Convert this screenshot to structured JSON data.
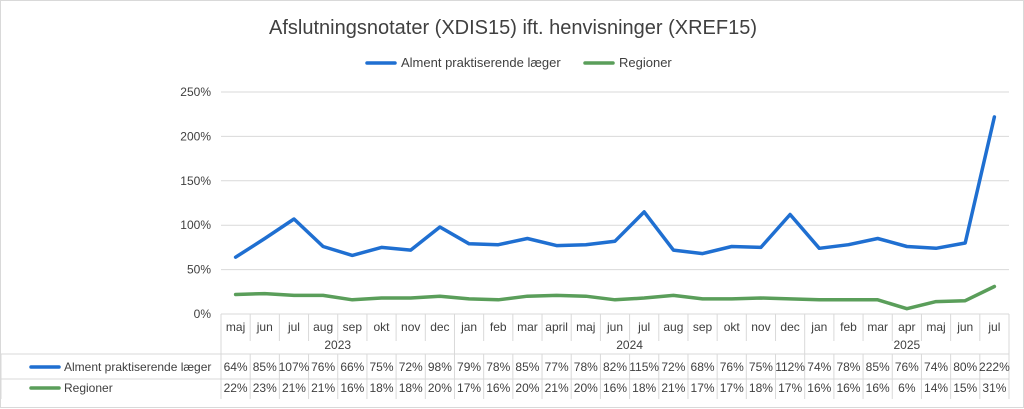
{
  "chart_data": {
    "type": "line",
    "title": "Afslutningsnotater (XDIS15) ift. henvisninger (XREF15)",
    "xlabel": "",
    "ylabel": "",
    "ylim": [
      0,
      250
    ],
    "y_ticks": [
      "0%",
      "50%",
      "100%",
      "150%",
      "200%",
      "250%"
    ],
    "legend_position": "top",
    "grid": true,
    "categories": [
      "maj",
      "jun",
      "jul",
      "aug",
      "sep",
      "okt",
      "nov",
      "dec",
      "jan",
      "feb",
      "mar",
      "april",
      "maj",
      "jun",
      "jul",
      "aug",
      "sep",
      "okt",
      "nov",
      "dec",
      "jan",
      "feb",
      "mar",
      "apr",
      "maj",
      "jun",
      "jul"
    ],
    "year_groups": [
      {
        "label": "2023",
        "count": 8
      },
      {
        "label": "2024",
        "count": 12
      },
      {
        "label": "2025",
        "count": 7
      }
    ],
    "series": [
      {
        "name": "Alment praktiserende læger",
        "color": "#1f6fd1",
        "values": [
          64,
          85,
          107,
          76,
          66,
          75,
          72,
          98,
          79,
          78,
          85,
          77,
          78,
          82,
          115,
          72,
          68,
          76,
          75,
          112,
          74,
          78,
          85,
          76,
          74,
          80,
          222
        ],
        "labels": [
          "64%",
          "85%",
          "107%",
          "76%",
          "66%",
          "75%",
          "72%",
          "98%",
          "79%",
          "78%",
          "85%",
          "77%",
          "78%",
          "82%",
          "115%",
          "72%",
          "68%",
          "76%",
          "75%",
          "112%",
          "74%",
          "78%",
          "85%",
          "76%",
          "74%",
          "80%",
          "222%"
        ]
      },
      {
        "name": "Regioner",
        "color": "#5a9e5a",
        "values": [
          22,
          23,
          21,
          21,
          16,
          18,
          18,
          20,
          17,
          16,
          20,
          21,
          20,
          16,
          18,
          21,
          17,
          17,
          18,
          17,
          16,
          16,
          16,
          6,
          14,
          15,
          31
        ],
        "labels": [
          "22%",
          "23%",
          "21%",
          "21%",
          "16%",
          "18%",
          "18%",
          "20%",
          "17%",
          "16%",
          "20%",
          "21%",
          "20%",
          "16%",
          "18%",
          "21%",
          "17%",
          "17%",
          "18%",
          "17%",
          "16%",
          "16%",
          "16%",
          "6%",
          "14%",
          "15%",
          "31%"
        ]
      }
    ]
  }
}
